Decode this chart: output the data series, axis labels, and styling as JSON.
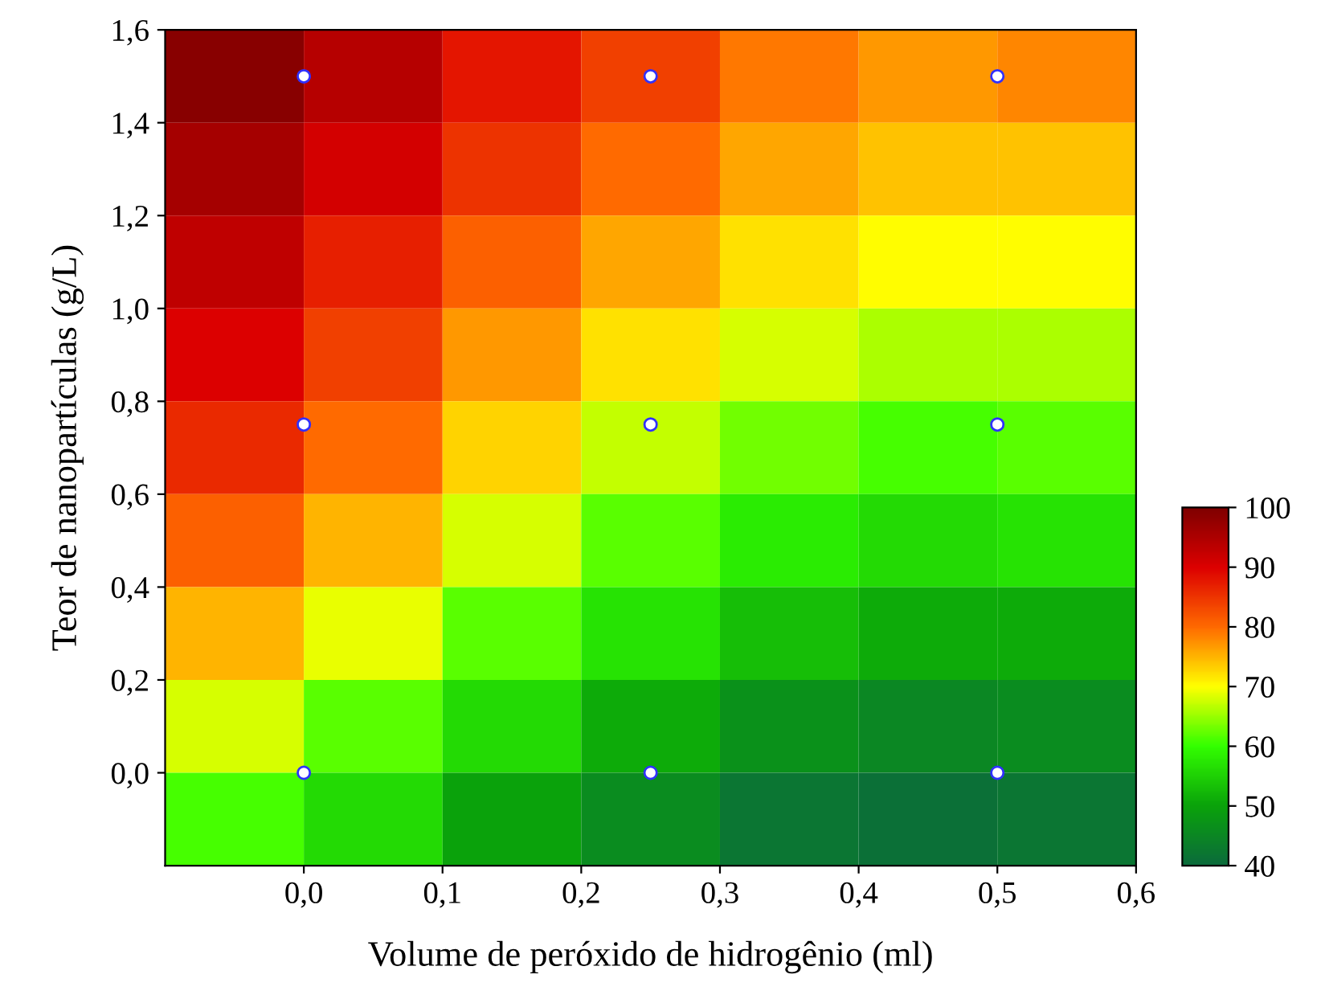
{
  "chart_data": {
    "type": "heatmap",
    "xlabel": "Volume de peróxido de hidrogênio (ml)",
    "ylabel": "Teor de nanopartículas (g/L)",
    "x": [
      -0.05,
      0.05,
      0.15,
      0.25,
      0.35,
      0.45,
      0.55
    ],
    "y": [
      1.5,
      1.3,
      1.1,
      0.9,
      0.7,
      0.5,
      0.3,
      0.1,
      -0.1
    ],
    "cells": [
      [
        99,
        94,
        88,
        84,
        79,
        77,
        78
      ],
      [
        96,
        91,
        85,
        80,
        76,
        74,
        74
      ],
      [
        93,
        87,
        81,
        76,
        72,
        70,
        70
      ],
      [
        90,
        84,
        77,
        72,
        68,
        66,
        66
      ],
      [
        86,
        80,
        73,
        67,
        63,
        61,
        62
      ],
      [
        81,
        75,
        68,
        62,
        58,
        56,
        57
      ],
      [
        75,
        69,
        62,
        57,
        53,
        51,
        51
      ],
      [
        68,
        62,
        56,
        51,
        47,
        45,
        46
      ],
      [
        61,
        56,
        50,
        46,
        42,
        41,
        42
      ]
    ],
    "cticks": [
      40,
      50,
      60,
      70,
      80,
      90,
      100
    ],
    "clim": [
      40,
      100
    ],
    "colors": [
      "#0b6b3c",
      "#0aa30a",
      "#33ff00",
      "#ffff00",
      "#ff6a00",
      "#dd0000",
      "#7f0000"
    ],
    "series": [
      {
        "type": "scatter",
        "x": [
          0,
          0.25,
          0.5,
          0,
          0.25,
          0.5,
          0,
          0.25,
          0.5
        ],
        "values": [
          1.5,
          1.5,
          1.5,
          0.75,
          0.75,
          0.75,
          0,
          0,
          0
        ],
        "color": "#ffffff"
      }
    ],
    "xlim": [
      -0.1,
      0.6
    ],
    "ylim": [
      -0.2,
      1.6
    ],
    "xticks": [
      {
        "value": 0.0,
        "label": "0,0"
      },
      {
        "value": 0.1,
        "label": "0,1"
      },
      {
        "value": 0.2,
        "label": "0,2"
      },
      {
        "value": 0.3,
        "label": "0,3"
      },
      {
        "value": 0.4,
        "label": "0,4"
      },
      {
        "value": 0.5,
        "label": "0,5"
      },
      {
        "value": 0.6,
        "label": "0,6"
      }
    ],
    "yticks": [
      {
        "value": 0.0,
        "label": "0,0"
      },
      {
        "value": 0.2,
        "label": "0,2"
      },
      {
        "value": 0.4,
        "label": "0,4"
      },
      {
        "value": 0.6,
        "label": "0,6"
      },
      {
        "value": 0.8,
        "label": "0,8"
      },
      {
        "value": 1.0,
        "label": "1,0"
      },
      {
        "value": 1.2,
        "label": "1,2"
      },
      {
        "value": 1.4,
        "label": "1,4"
      },
      {
        "value": 1.6,
        "label": "1,6"
      }
    ]
  }
}
